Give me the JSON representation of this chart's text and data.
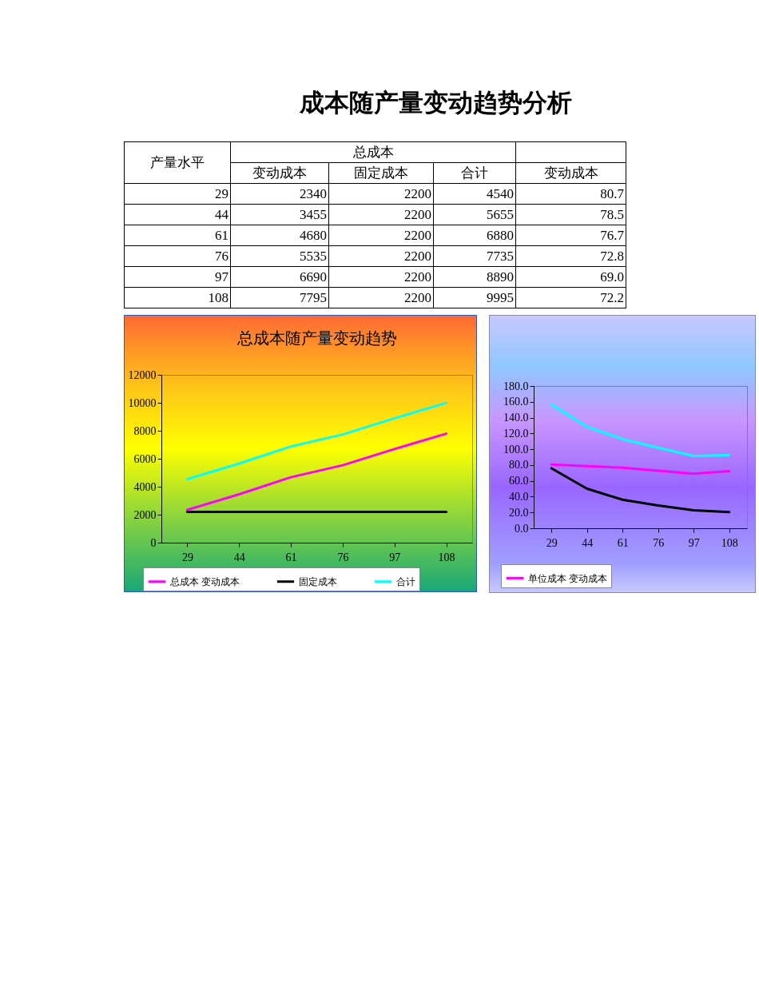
{
  "chart_data": [
    {
      "type": "other",
      "title": "成本随产量变动趋势分析",
      "annotations": [
        "产量水平",
        "总成本",
        "变动成本",
        "固定成本",
        "合计",
        "变动成本",
        "29",
        "2340",
        "2200",
        "4540",
        "80.7",
        "44",
        "3455",
        "2200",
        "5655",
        "78.5",
        "61",
        "4680",
        "2200",
        "6880",
        "76.7",
        "76",
        "5535",
        "2200",
        "7735",
        "72.8",
        "97",
        "6690",
        "2200",
        "8890",
        "69.0",
        "108",
        "7795",
        "2200",
        "9995",
        "72.2"
      ]
    },
    {
      "type": "line",
      "title": "总成本随产量变动趋势",
      "categories": [
        "29",
        "44",
        "61",
        "76",
        "97",
        "108"
      ],
      "series": [
        {
          "name": "总成本 变动成本",
          "color": "#ff00ff",
          "values": [
            2340,
            3455,
            4680,
            5535,
            6690,
            7795
          ]
        },
        {
          "name": "固定成本",
          "color": "#000000",
          "values": [
            2200,
            2200,
            2200,
            2200,
            2200,
            2200
          ]
        },
        {
          "name": "合计",
          "color": "#00ffff",
          "values": [
            4540,
            5655,
            6880,
            7735,
            8890,
            9995
          ]
        }
      ],
      "ylim": [
        0,
        12000
      ],
      "yticks": [
        0,
        2000,
        4000,
        6000,
        8000,
        10000,
        12000
      ],
      "legend": "bottom"
    },
    {
      "type": "line",
      "categories": [
        "29",
        "44",
        "61",
        "76",
        "97",
        "108"
      ],
      "series": [
        {
          "name": "单位成本 变动成本",
          "color": "#ff00ff",
          "values": [
            80.7,
            78.5,
            76.7,
            72.8,
            69.0,
            72.2
          ]
        },
        {
          "color": "#000000",
          "values": [
            75.9,
            50.0,
            36.1,
            28.9,
            22.7,
            20.4
          ]
        },
        {
          "color": "#00ffff",
          "values": [
            156.6,
            128.5,
            112.8,
            101.8,
            91.6,
            92.5
          ]
        }
      ],
      "ylim": [
        0,
        180
      ],
      "yticks": [
        {
          "value": 0,
          "label": "0.0"
        },
        {
          "value": 20,
          "label": "20.0"
        },
        {
          "value": 40,
          "label": "40.0"
        },
        {
          "value": 60,
          "label": "60.0"
        },
        {
          "value": 80,
          "label": "80.0"
        },
        {
          "value": 100,
          "label": "100.0"
        },
        {
          "value": 120,
          "label": "120.0"
        },
        {
          "value": 140,
          "label": "140.0"
        },
        {
          "value": 160,
          "label": "160.0"
        },
        {
          "value": 180,
          "label": "180.0"
        }
      ],
      "legend": "bottom"
    }
  ]
}
